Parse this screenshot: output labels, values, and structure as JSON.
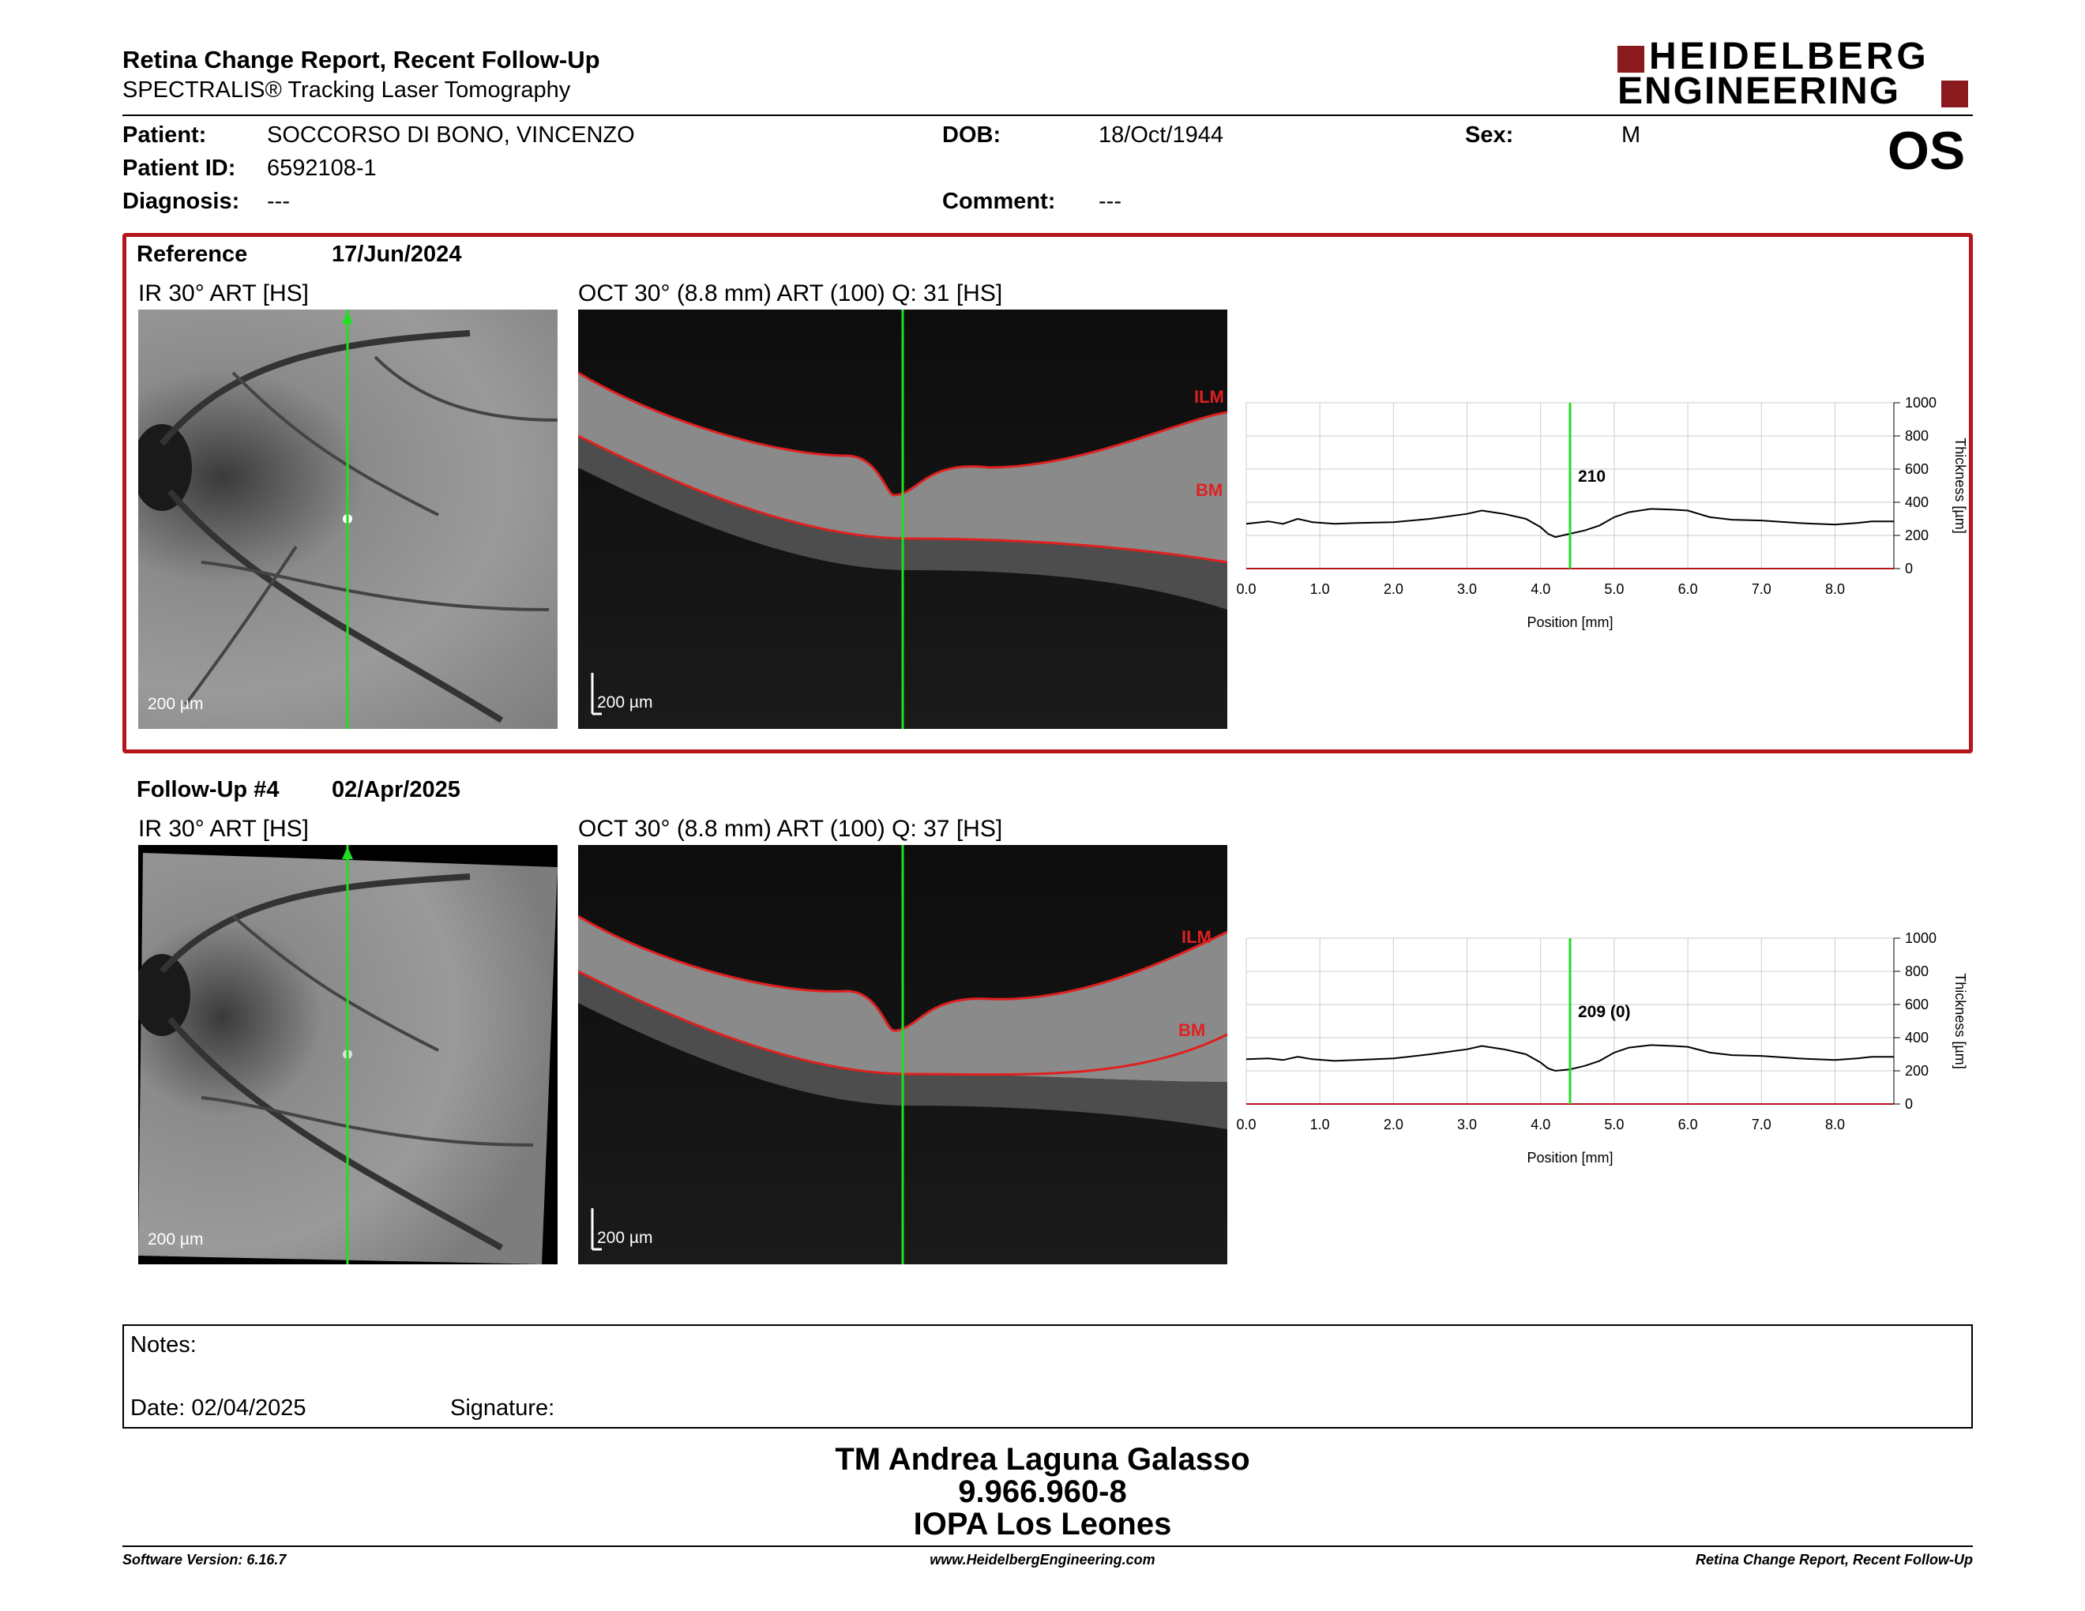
{
  "header": {
    "title": "Retina Change Report, Recent Follow-Up",
    "subtitle": "SPECTRALIS® Tracking Laser Tomography",
    "brand_line1": "HEIDELBERG",
    "brand_line2": "ENGINEERING",
    "eye": "OS",
    "brand_color": "#8b1a1e"
  },
  "patient": {
    "patient_label": "Patient:",
    "patient_value": "SOCCORSO DI BONO, VINCENZO",
    "id_label": "Patient ID:",
    "id_value": "6592108-1",
    "diag_label": "Diagnosis:",
    "diag_value": "---",
    "dob_label": "DOB:",
    "dob_value": "18/Oct/1944",
    "comment_label": "Comment:",
    "comment_value": "---",
    "sex_label": "Sex:",
    "sex_value": "M"
  },
  "reference": {
    "label": "Reference",
    "date": "17/Jun/2024",
    "ir_title": "IR 30° ART [HS]",
    "oct_title": "OCT 30° (8.8 mm) ART (100) Q: 31 [HS]",
    "scale_ir": "200 µm",
    "scale_oct": "200 µm",
    "ilm": "ILM",
    "bm": "BM",
    "marker_value": "210",
    "highlight_color": "#b4161c"
  },
  "followup": {
    "label": "Follow-Up #4",
    "date": "02/Apr/2025",
    "ir_title": "IR 30° ART [HS]",
    "oct_title": "OCT 30° (8.8 mm) ART (100) Q: 37 [HS]",
    "scale_ir": "200 µm",
    "scale_oct": "200 µm",
    "ilm": "ILM",
    "bm": "BM",
    "marker_value": "209 (0)"
  },
  "chart_data": [
    {
      "type": "line",
      "xlabel": "Position [mm]",
      "ylabel": "Thickness [µm]",
      "xlim": [
        0,
        8.8
      ],
      "ylim": [
        0,
        1000
      ],
      "xticks": [
        "0.0",
        "1.0",
        "2.0",
        "3.0",
        "4.0",
        "5.0",
        "6.0",
        "7.0",
        "8.0"
      ],
      "yticks": [
        "0",
        "200",
        "400",
        "600",
        "800",
        "1000"
      ],
      "marker_x": 4.4,
      "marker_label": "210",
      "series": [
        {
          "x": [
            0.0,
            0.3,
            0.5,
            0.7,
            0.9,
            1.2,
            1.5,
            2.0,
            2.5,
            3.0,
            3.2,
            3.5,
            3.8,
            4.0,
            4.1,
            4.2,
            4.4,
            4.6,
            4.8,
            5.0,
            5.2,
            5.5,
            5.8,
            6.0,
            6.3,
            6.6,
            7.0,
            7.5,
            8.0,
            8.3,
            8.5,
            8.8
          ],
          "y": [
            270,
            285,
            270,
            300,
            280,
            270,
            275,
            280,
            300,
            330,
            350,
            330,
            300,
            250,
            210,
            190,
            210,
            230,
            260,
            310,
            340,
            360,
            355,
            350,
            310,
            295,
            290,
            275,
            265,
            275,
            285,
            285
          ]
        }
      ]
    },
    {
      "type": "line",
      "xlabel": "Position [mm]",
      "ylabel": "Thickness [µm]",
      "xlim": [
        0,
        8.8
      ],
      "ylim": [
        0,
        1000
      ],
      "xticks": [
        "0.0",
        "1.0",
        "2.0",
        "3.0",
        "4.0",
        "5.0",
        "6.0",
        "7.0",
        "8.0"
      ],
      "yticks": [
        "0",
        "200",
        "400",
        "600",
        "800",
        "1000"
      ],
      "marker_x": 4.4,
      "marker_label": "209 (0)",
      "series": [
        {
          "x": [
            0.0,
            0.3,
            0.5,
            0.7,
            0.9,
            1.2,
            1.5,
            2.0,
            2.5,
            3.0,
            3.2,
            3.5,
            3.8,
            4.0,
            4.1,
            4.2,
            4.4,
            4.6,
            4.8,
            5.0,
            5.2,
            5.5,
            5.8,
            6.0,
            6.3,
            6.6,
            7.0,
            7.5,
            8.0,
            8.3,
            8.5,
            8.8
          ],
          "y": [
            270,
            275,
            265,
            285,
            270,
            260,
            265,
            275,
            300,
            330,
            350,
            330,
            300,
            250,
            215,
            200,
            209,
            230,
            260,
            310,
            340,
            355,
            350,
            345,
            310,
            295,
            290,
            275,
            265,
            275,
            285,
            285
          ]
        }
      ]
    }
  ],
  "notes": {
    "notes_label": "Notes:",
    "date_label": "Date: 02/04/2025",
    "signature_label": "Signature:"
  },
  "signature": {
    "name": "TM Andrea Laguna Galasso",
    "id": "9.966.960-8",
    "org": "IOPA Los Leones"
  },
  "footer": {
    "software": "Software Version: 6.16.7",
    "website": "www.HeidelbergEngineering.com",
    "report": "Retina Change Report, Recent Follow-Up"
  }
}
